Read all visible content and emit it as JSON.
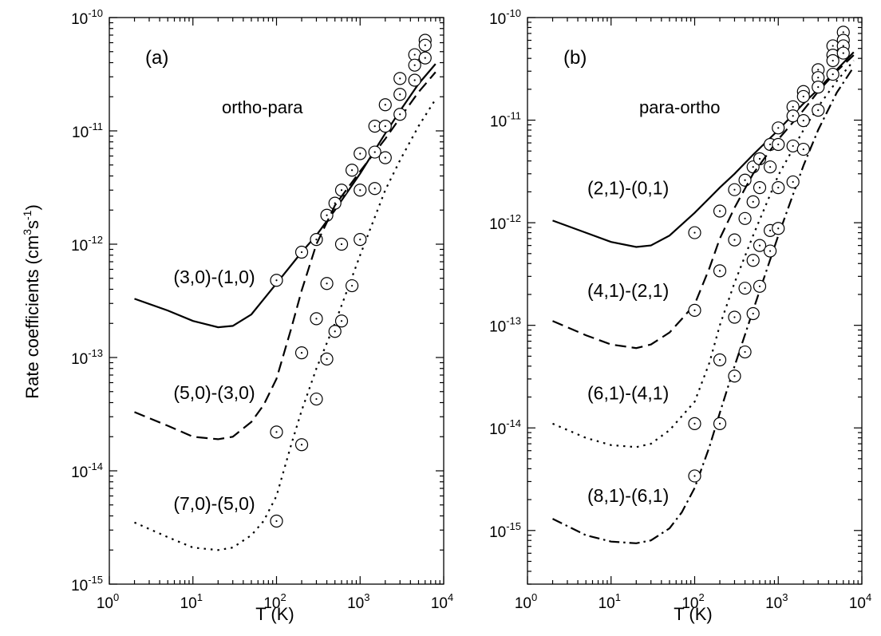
{
  "chart_data": [
    {
      "type": "line",
      "panel_label": "(a)",
      "region_label": "ortho-para",
      "xlabel": "T (K)",
      "ylabel": "Rate coefficients (cm3s-1)",
      "xscale": "log",
      "yscale": "log",
      "xlim": [
        1,
        10000
      ],
      "ylim": [
        1e-15,
        1e-10
      ],
      "x_ticks": [
        {
          "value": 1,
          "base": "10",
          "exp": "0"
        },
        {
          "value": 10,
          "base": "10",
          "exp": "1"
        },
        {
          "value": 100,
          "base": "10",
          "exp": "2"
        },
        {
          "value": 1000,
          "base": "10",
          "exp": "3"
        },
        {
          "value": 10000,
          "base": "10",
          "exp": "4"
        }
      ],
      "y_ticks": [
        {
          "value": 1e-15,
          "base": "10",
          "exp": "-15"
        },
        {
          "value": 1e-14,
          "base": "10",
          "exp": "-14"
        },
        {
          "value": 1e-13,
          "base": "10",
          "exp": "-13"
        },
        {
          "value": 1e-12,
          "base": "10",
          "exp": "-12"
        },
        {
          "value": 1e-11,
          "base": "10",
          "exp": "-11"
        },
        {
          "value": 1e-10,
          "base": "10",
          "exp": "-10"
        }
      ],
      "series": [
        {
          "name": "(3,0)-(1,0)",
          "line_style": "solid",
          "label_at": [
            18,
            4.5e-13
          ],
          "x": [
            2,
            5,
            10,
            20,
            30,
            50,
            100,
            200,
            300,
            500,
            1000,
            2000,
            3000,
            5000,
            8000
          ],
          "y": [
            3.3e-13,
            2.6e-13,
            2.1e-13,
            1.85e-13,
            1.9e-13,
            2.4e-13,
            4.5e-13,
            8.5e-13,
            1.2e-12,
            2e-12,
            4.2e-12,
            9.5e-12,
            1.5e-11,
            2.6e-11,
            3.9e-11
          ],
          "markers_x": [
            100,
            200,
            300,
            400,
            500,
            600,
            800,
            1000,
            1500,
            2000,
            3000,
            4500,
            6000
          ],
          "markers_y": [
            4.8e-13,
            8.5e-13,
            1.1e-12,
            1.8e-12,
            2.3e-12,
            3e-12,
            4.5e-12,
            6.3e-12,
            1.1e-11,
            1.7e-11,
            2.9e-11,
            4.7e-11,
            6.3e-11
          ]
        },
        {
          "name": "(5,0)-(3,0)",
          "line_style": "dashed",
          "label_at": [
            18,
            4.3e-14
          ],
          "x": [
            2,
            5,
            10,
            20,
            30,
            50,
            70,
            100,
            150,
            200,
            300,
            500,
            1000,
            2000,
            3000,
            5000,
            8000
          ],
          "y": [
            3.3e-14,
            2.5e-14,
            2e-14,
            1.9e-14,
            2e-14,
            2.7e-14,
            3.8e-14,
            6.5e-14,
            1.8e-13,
            3.9e-13,
            1e-12,
            2.2e-12,
            4.4e-12,
            8.5e-12,
            1.3e-11,
            2.2e-11,
            3.3e-11
          ],
          "markers_x": [
            100,
            200,
            300,
            400,
            600,
            1000,
            1500,
            2000,
            3000,
            4500,
            6000
          ],
          "markers_y": [
            2.2e-14,
            1.1e-13,
            2.2e-13,
            4.5e-13,
            1e-12,
            3e-12,
            6.5e-12,
            1.1e-11,
            2.1e-11,
            3.8e-11,
            5.7e-11
          ]
        },
        {
          "name": "(7,0)-(5,0)",
          "line_style": "dotted",
          "label_at": [
            18,
            4.5e-15
          ],
          "x": [
            2,
            5,
            10,
            20,
            30,
            50,
            70,
            100,
            150,
            200,
            300,
            500,
            1000,
            2000,
            3000,
            5000,
            8000
          ],
          "y": [
            3.5e-15,
            2.6e-15,
            2.1e-15,
            2e-15,
            2.1e-15,
            2.7e-15,
            3.6e-15,
            6e-15,
            1.7e-14,
            3.4e-14,
            8e-14,
            2e-13,
            8e-13,
            3e-12,
            5.5e-12,
            1.1e-11,
            1.9e-11
          ],
          "markers_x": [
            100,
            200,
            300,
            400,
            500,
            600,
            800,
            1000,
            1500,
            2000,
            3000,
            4500,
            6000
          ],
          "markers_y": [
            3.6e-15,
            1.7e-14,
            4.3e-14,
            9.7e-14,
            1.7e-13,
            2.1e-13,
            4.3e-13,
            1.1e-12,
            3.1e-12,
            5.8e-12,
            1.4e-11,
            2.8e-11,
            4.4e-11
          ]
        }
      ]
    },
    {
      "type": "line",
      "panel_label": "(b)",
      "region_label": "para-ortho",
      "xlabel": "T (K)",
      "ylabel": "",
      "xscale": "log",
      "yscale": "log",
      "xlim": [
        1,
        10000
      ],
      "ylim": [
        3e-16,
        1e-10
      ],
      "x_ticks": [
        {
          "value": 1,
          "base": "10",
          "exp": "0"
        },
        {
          "value": 10,
          "base": "10",
          "exp": "1"
        },
        {
          "value": 100,
          "base": "10",
          "exp": "2"
        },
        {
          "value": 1000,
          "base": "10",
          "exp": "3"
        },
        {
          "value": 10000,
          "base": "10",
          "exp": "4"
        }
      ],
      "y_ticks": [
        {
          "value": 1e-15,
          "base": "10",
          "exp": "-15"
        },
        {
          "value": 1e-14,
          "base": "10",
          "exp": "-14"
        },
        {
          "value": 1e-13,
          "base": "10",
          "exp": "-13"
        },
        {
          "value": 1e-12,
          "base": "10",
          "exp": "-12"
        },
        {
          "value": 1e-11,
          "base": "10",
          "exp": "-11"
        },
        {
          "value": 1e-10,
          "base": "10",
          "exp": "-10"
        }
      ],
      "series": [
        {
          "name": "(2,1)-(0,1)",
          "line_style": "solid",
          "label_at": [
            16,
            1.9e-12
          ],
          "x": [
            2,
            5,
            10,
            20,
            30,
            50,
            100,
            200,
            300,
            500,
            1000,
            2000,
            3000,
            5000,
            8000
          ],
          "y": [
            1.05e-12,
            8e-13,
            6.5e-13,
            5.8e-13,
            6e-13,
            7.5e-13,
            1.25e-12,
            2.2e-12,
            3e-12,
            4.6e-12,
            8e-12,
            1.45e-11,
            2e-11,
            3.1e-11,
            4.6e-11
          ],
          "markers_x": [
            100,
            200,
            300,
            400,
            500,
            600,
            800,
            1000,
            1500,
            2000,
            3000,
            4500,
            6000
          ],
          "markers_y": [
            8e-13,
            1.3e-12,
            2.1e-12,
            2.6e-12,
            3.5e-12,
            4.2e-12,
            5.8e-12,
            8.4e-12,
            1.35e-11,
            1.9e-11,
            3.1e-11,
            5.3e-11,
            7.2e-11
          ]
        },
        {
          "name": "(4,1)-(2,1)",
          "line_style": "dashed",
          "label_at": [
            16,
            1.9e-13
          ],
          "x": [
            2,
            5,
            10,
            20,
            30,
            50,
            70,
            100,
            150,
            200,
            300,
            500,
            1000,
            2000,
            3000,
            5000,
            8000
          ],
          "y": [
            1.1e-13,
            8e-14,
            6.5e-14,
            6e-14,
            6.5e-14,
            8.5e-14,
            1.15e-13,
            1.6e-13,
            3.6e-13,
            7e-13,
            1.4e-12,
            3e-12,
            6.5e-12,
            1.25e-11,
            1.9e-11,
            3e-11,
            4.3e-11
          ],
          "markers_x": [
            100,
            200,
            300,
            400,
            500,
            600,
            800,
            1000,
            1500,
            2000,
            3000,
            4500,
            6000
          ],
          "markers_y": [
            1.4e-13,
            3.4e-13,
            6.8e-13,
            1.1e-12,
            1.6e-12,
            2.2e-12,
            3.5e-12,
            5.8e-12,
            1.1e-11,
            1.7e-11,
            2.6e-11,
            4.3e-11,
            6e-11
          ]
        },
        {
          "name": "(6,1)-(4,1)",
          "line_style": "dotted",
          "label_at": [
            16,
            1.9e-14
          ],
          "x": [
            2,
            5,
            10,
            20,
            30,
            50,
            70,
            100,
            150,
            200,
            300,
            500,
            1000,
            2000,
            3000,
            5000,
            8000
          ],
          "y": [
            1.1e-14,
            8e-15,
            6.8e-15,
            6.5e-15,
            7e-15,
            9.5e-15,
            1.3e-14,
            1.8e-14,
            4.3e-14,
            1e-13,
            2.6e-13,
            7.5e-13,
            2.9e-12,
            8e-12,
            1.35e-11,
            2.4e-11,
            3.8e-11
          ],
          "markers_x": [
            100,
            200,
            300,
            400,
            500,
            600,
            800,
            1000,
            1500,
            2000,
            3000,
            4500,
            6000
          ],
          "markers_y": [
            1.1e-14,
            4.6e-14,
            1.2e-13,
            2.3e-13,
            4.3e-13,
            6e-13,
            8.4e-13,
            2.2e-12,
            5.6e-12,
            9.9e-12,
            2.1e-11,
            3.8e-11,
            5.3e-11
          ]
        },
        {
          "name": "(8,1)-(6,1)",
          "line_style": "dashdot",
          "label_at": [
            16,
            1.9e-15
          ],
          "x": [
            2,
            5,
            10,
            20,
            30,
            50,
            70,
            100,
            150,
            200,
            300,
            500,
            1000,
            2000,
            3000,
            5000,
            8000
          ],
          "y": [
            1.3e-15,
            9e-16,
            7.8e-16,
            7.5e-16,
            8e-16,
            1.05e-15,
            1.5e-15,
            2.6e-15,
            6.5e-15,
            1.4e-14,
            4e-14,
            1.4e-13,
            7.5e-13,
            3.6e-12,
            8e-12,
            1.85e-11,
            3.3e-11
          ],
          "markers_x": [
            100,
            200,
            300,
            400,
            500,
            600,
            800,
            1000,
            1500,
            2000,
            3000,
            4500,
            6000
          ],
          "markers_y": [
            3.4e-15,
            1.1e-14,
            3.2e-14,
            5.5e-14,
            1.3e-13,
            2.4e-13,
            5.3e-13,
            8.8e-13,
            2.5e-12,
            5.2e-12,
            1.25e-11,
            2.8e-11,
            4.5e-11
          ]
        }
      ]
    }
  ]
}
